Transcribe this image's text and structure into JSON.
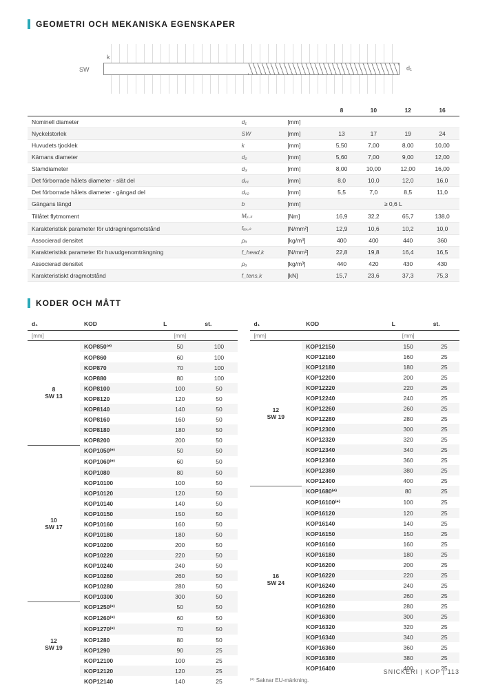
{
  "section1_title": "GEOMETRI OCH MEKANISKA EGENSKAPER",
  "section2_title": "KODER OCH MÅTT",
  "diagram": {
    "sw": "SW",
    "k": "k",
    "d1": "d₁"
  },
  "props": {
    "headers": [
      "",
      "",
      "",
      "8",
      "10",
      "12",
      "16"
    ],
    "rows": [
      {
        "label": "Nominell diameter",
        "sym": "d₁",
        "unit": "[mm]",
        "vals": [
          "",
          "",
          "",
          ""
        ],
        "alt": false
      },
      {
        "label": "Nyckelstorlek",
        "sym": "SW",
        "unit": "[mm]",
        "vals": [
          "13",
          "17",
          "19",
          "24"
        ],
        "alt": true
      },
      {
        "label": "Huvudets tjocklek",
        "sym": "k",
        "unit": "[mm]",
        "vals": [
          "5,50",
          "7,00",
          "8,00",
          "10,00"
        ],
        "alt": false
      },
      {
        "label": "Kärnans diameter",
        "sym": "d₂",
        "unit": "[mm]",
        "vals": [
          "5,60",
          "7,00",
          "9,00",
          "12,00"
        ],
        "alt": true
      },
      {
        "label": "Stamdiameter",
        "sym": "d₃",
        "unit": "[mm]",
        "vals": [
          "8,00",
          "10,00",
          "12,00",
          "16,00"
        ],
        "alt": false
      },
      {
        "label": "Det förborrade hålets diameter - slät del",
        "sym": "dᵥ₁",
        "unit": "[mm]",
        "vals": [
          "8,0",
          "10,0",
          "12,0",
          "16,0"
        ],
        "alt": true
      },
      {
        "label": "Det förborrade hålets diameter - gängad del",
        "sym": "dᵥ₂",
        "unit": "[mm]",
        "vals": [
          "5,5",
          "7,0",
          "8,5",
          "11,0"
        ],
        "alt": false
      },
      {
        "label": "Gängans längd",
        "sym": "b",
        "unit": "[mm]",
        "vals": [
          "",
          "≥ 0,6 L",
          "",
          ""
        ],
        "alt": true,
        "span": true
      },
      {
        "label": "Tillåtet flytmoment",
        "sym": "Mᵧ,ₖ",
        "unit": "[Nm]",
        "vals": [
          "16,9",
          "32,2",
          "65,7",
          "138,0"
        ],
        "alt": false
      },
      {
        "label": "Karakteristisk parameter för utdragningsmotstånd",
        "sym": "fₐₓ,ₖ",
        "unit": "[N/mm²]",
        "vals": [
          "12,9",
          "10,6",
          "10,2",
          "10,0"
        ],
        "alt": true
      },
      {
        "label": "Associerad densitet",
        "sym": "ρₐ",
        "unit": "[kg/m³]",
        "vals": [
          "400",
          "400",
          "440",
          "360"
        ],
        "alt": false
      },
      {
        "label": "Karakteristisk parameter för huvudgenomträngning",
        "sym": "f_head,k",
        "unit": "[N/mm²]",
        "vals": [
          "22,8",
          "19,8",
          "16,4",
          "16,5"
        ],
        "alt": true
      },
      {
        "label": "Associerad densitet",
        "sym": "ρₐ",
        "unit": "[kg/m³]",
        "vals": [
          "440",
          "420",
          "430",
          "430"
        ],
        "alt": false
      },
      {
        "label": "Karakteristiskt dragmotstånd",
        "sym": "f_tens,k",
        "unit": "[kN]",
        "vals": [
          "15,7",
          "23,6",
          "37,3",
          "75,3"
        ],
        "alt": true
      }
    ]
  },
  "codes": {
    "headers": {
      "d1": "d₁",
      "kod": "KOD",
      "L": "L",
      "st": "st.",
      "d1u": "[mm]",
      "Lu": "[mm]"
    },
    "left": [
      {
        "group": "8\nSW 13",
        "rows": [
          {
            "k": "KOP850⁽*⁾",
            "l": "50",
            "s": "100"
          },
          {
            "k": "KOP860",
            "l": "60",
            "s": "100"
          },
          {
            "k": "KOP870",
            "l": "70",
            "s": "100"
          },
          {
            "k": "KOP880",
            "l": "80",
            "s": "100"
          },
          {
            "k": "KOP8100",
            "l": "100",
            "s": "50"
          },
          {
            "k": "KOP8120",
            "l": "120",
            "s": "50"
          },
          {
            "k": "KOP8140",
            "l": "140",
            "s": "50"
          },
          {
            "k": "KOP8160",
            "l": "160",
            "s": "50"
          },
          {
            "k": "KOP8180",
            "l": "180",
            "s": "50"
          },
          {
            "k": "KOP8200",
            "l": "200",
            "s": "50"
          }
        ]
      },
      {
        "group": "10\nSW 17",
        "rows": [
          {
            "k": "KOP1050⁽*⁾",
            "l": "50",
            "s": "50"
          },
          {
            "k": "KOP1060⁽*⁾",
            "l": "60",
            "s": "50"
          },
          {
            "k": "KOP1080",
            "l": "80",
            "s": "50"
          },
          {
            "k": "KOP10100",
            "l": "100",
            "s": "50"
          },
          {
            "k": "KOP10120",
            "l": "120",
            "s": "50"
          },
          {
            "k": "KOP10140",
            "l": "140",
            "s": "50"
          },
          {
            "k": "KOP10150",
            "l": "150",
            "s": "50"
          },
          {
            "k": "KOP10160",
            "l": "160",
            "s": "50"
          },
          {
            "k": "KOP10180",
            "l": "180",
            "s": "50"
          },
          {
            "k": "KOP10200",
            "l": "200",
            "s": "50"
          },
          {
            "k": "KOP10220",
            "l": "220",
            "s": "50"
          },
          {
            "k": "KOP10240",
            "l": "240",
            "s": "50"
          },
          {
            "k": "KOP10260",
            "l": "260",
            "s": "50"
          },
          {
            "k": "KOP10280",
            "l": "280",
            "s": "50"
          },
          {
            "k": "KOP10300",
            "l": "300",
            "s": "50"
          }
        ]
      },
      {
        "group": "12\nSW 19",
        "rows": [
          {
            "k": "KOP1250⁽*⁾",
            "l": "50",
            "s": "50"
          },
          {
            "k": "KOP1260⁽*⁾",
            "l": "60",
            "s": "50"
          },
          {
            "k": "KOP1270⁽*⁾",
            "l": "70",
            "s": "50"
          },
          {
            "k": "KOP1280",
            "l": "80",
            "s": "50"
          },
          {
            "k": "KOP1290",
            "l": "90",
            "s": "25"
          },
          {
            "k": "KOP12100",
            "l": "100",
            "s": "25"
          },
          {
            "k": "KOP12120",
            "l": "120",
            "s": "25"
          },
          {
            "k": "KOP12140",
            "l": "140",
            "s": "25"
          }
        ]
      }
    ],
    "right": [
      {
        "group": "12\nSW 19",
        "rows": [
          {
            "k": "KOP12150",
            "l": "150",
            "s": "25"
          },
          {
            "k": "KOP12160",
            "l": "160",
            "s": "25"
          },
          {
            "k": "KOP12180",
            "l": "180",
            "s": "25"
          },
          {
            "k": "KOP12200",
            "l": "200",
            "s": "25"
          },
          {
            "k": "KOP12220",
            "l": "220",
            "s": "25"
          },
          {
            "k": "KOP12240",
            "l": "240",
            "s": "25"
          },
          {
            "k": "KOP12260",
            "l": "260",
            "s": "25"
          },
          {
            "k": "KOP12280",
            "l": "280",
            "s": "25"
          },
          {
            "k": "KOP12300",
            "l": "300",
            "s": "25"
          },
          {
            "k": "KOP12320",
            "l": "320",
            "s": "25"
          },
          {
            "k": "KOP12340",
            "l": "340",
            "s": "25"
          },
          {
            "k": "KOP12360",
            "l": "360",
            "s": "25"
          },
          {
            "k": "KOP12380",
            "l": "380",
            "s": "25"
          },
          {
            "k": "KOP12400",
            "l": "400",
            "s": "25"
          }
        ]
      },
      {
        "group": "16\nSW 24",
        "rows": [
          {
            "k": "KOP1680⁽*⁾",
            "l": "80",
            "s": "25"
          },
          {
            "k": "KOP16100⁽*⁾",
            "l": "100",
            "s": "25"
          },
          {
            "k": "KOP16120",
            "l": "120",
            "s": "25"
          },
          {
            "k": "KOP16140",
            "l": "140",
            "s": "25"
          },
          {
            "k": "KOP16150",
            "l": "150",
            "s": "25"
          },
          {
            "k": "KOP16160",
            "l": "160",
            "s": "25"
          },
          {
            "k": "KOP16180",
            "l": "180",
            "s": "25"
          },
          {
            "k": "KOP16200",
            "l": "200",
            "s": "25"
          },
          {
            "k": "KOP16220",
            "l": "220",
            "s": "25"
          },
          {
            "k": "KOP16240",
            "l": "240",
            "s": "25"
          },
          {
            "k": "KOP16260",
            "l": "260",
            "s": "25"
          },
          {
            "k": "KOP16280",
            "l": "280",
            "s": "25"
          },
          {
            "k": "KOP16300",
            "l": "300",
            "s": "25"
          },
          {
            "k": "KOP16320",
            "l": "320",
            "s": "25"
          },
          {
            "k": "KOP16340",
            "l": "340",
            "s": "25"
          },
          {
            "k": "KOP16360",
            "l": "360",
            "s": "25"
          },
          {
            "k": "KOP16380",
            "l": "380",
            "s": "25"
          },
          {
            "k": "KOP16400",
            "l": "400",
            "s": "25"
          }
        ]
      }
    ]
  },
  "footnote": "⁽*⁾ Saknar EU-märkning.",
  "footer": "SNICKERI  |  KOP  |  113"
}
